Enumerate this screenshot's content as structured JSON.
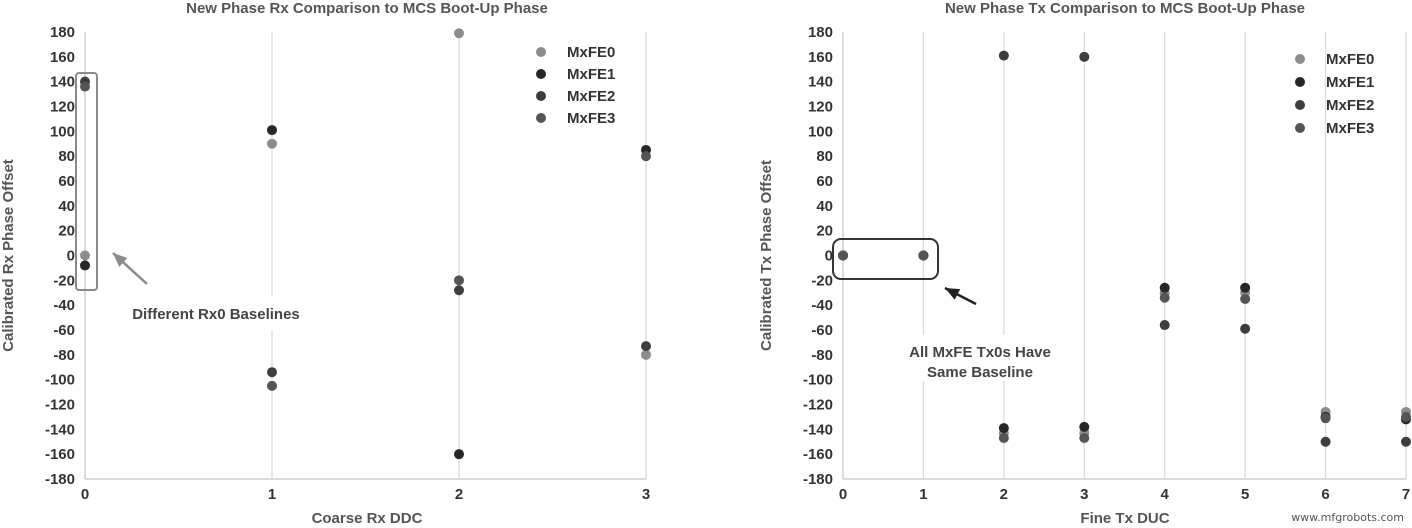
{
  "chart_data": [
    {
      "type": "scatter",
      "title": "New Phase Rx Comparison to MCS Boot-Up Phase",
      "xlabel": "Coarse Rx DDC",
      "ylabel": "Calibrated Rx Phase Offset",
      "xlim": [
        0,
        3
      ],
      "ylim": [
        -180,
        180
      ],
      "xticks": [
        0,
        1,
        2,
        3
      ],
      "yticks": [
        180,
        160,
        140,
        120,
        100,
        80,
        60,
        40,
        20,
        0,
        -20,
        -40,
        -60,
        -80,
        -100,
        -120,
        -140,
        -160,
        -180
      ],
      "grid": "vertical",
      "legend": "top-right",
      "series": [
        {
          "name": "MxFE0",
          "color": "#8c8c8c",
          "points": [
            [
              0,
              0
            ],
            [
              1,
              90
            ],
            [
              2,
              179
            ],
            [
              3,
              -80
            ]
          ]
        },
        {
          "name": "MxFE1",
          "color": "#262626",
          "points": [
            [
              0,
              -8
            ],
            [
              1,
              101
            ],
            [
              2,
              -160
            ],
            [
              3,
              85
            ]
          ]
        },
        {
          "name": "MxFE2",
          "color": "#3d3d3d",
          "points": [
            [
              0,
              140
            ],
            [
              1,
              -94
            ],
            [
              2,
              -28
            ],
            [
              3,
              -73
            ]
          ]
        },
        {
          "name": "MxFE3",
          "color": "#555555",
          "points": [
            [
              0,
              136
            ],
            [
              1,
              -105
            ],
            [
              2,
              -20
            ],
            [
              3,
              80
            ]
          ]
        }
      ],
      "annotation": "Different Rx0 Baselines"
    },
    {
      "type": "scatter",
      "title": "New Phase Tx Comparison to MCS Boot-Up Phase",
      "xlabel": "Fine Tx DUC",
      "ylabel": "Calibrated Tx Phase Offset",
      "xlim": [
        0,
        7
      ],
      "ylim": [
        -180,
        180
      ],
      "xticks": [
        0,
        1,
        2,
        3,
        4,
        5,
        6,
        7
      ],
      "yticks": [
        180,
        160,
        140,
        120,
        100,
        80,
        60,
        40,
        20,
        0,
        -20,
        -40,
        -60,
        -80,
        -100,
        -120,
        -140,
        -160,
        -180
      ],
      "grid": "vertical",
      "legend": "top-right",
      "series": [
        {
          "name": "MxFE0",
          "color": "#8c8c8c",
          "points": [
            [
              0,
              0
            ],
            [
              1,
              0
            ],
            [
              2,
              -143
            ],
            [
              3,
              -143
            ],
            [
              4,
              -30
            ],
            [
              5,
              -30
            ],
            [
              6,
              -126
            ],
            [
              7,
              -126
            ]
          ]
        },
        {
          "name": "MxFE1",
          "color": "#262626",
          "points": [
            [
              0,
              0
            ],
            [
              1,
              0
            ],
            [
              2,
              -139
            ],
            [
              3,
              -138
            ],
            [
              4,
              -26
            ],
            [
              5,
              -26
            ],
            [
              6,
              -130
            ],
            [
              7,
              -132
            ]
          ]
        },
        {
          "name": "MxFE2",
          "color": "#3d3d3d",
          "points": [
            [
              0,
              0
            ],
            [
              1,
              0
            ],
            [
              2,
              161
            ],
            [
              3,
              160
            ],
            [
              4,
              -56
            ],
            [
              5,
              -59
            ],
            [
              6,
              -150
            ],
            [
              7,
              -150
            ]
          ]
        },
        {
          "name": "MxFE3",
          "color": "#555555",
          "points": [
            [
              0,
              0
            ],
            [
              1,
              0
            ],
            [
              2,
              -147
            ],
            [
              3,
              -147
            ],
            [
              4,
              -34
            ],
            [
              5,
              -35
            ],
            [
              6,
              -131
            ],
            [
              7,
              -130
            ]
          ]
        }
      ],
      "annotation": "All MxFE Tx0s Have Same Baseline"
    }
  ],
  "watermark": "www.mfgrobots.com"
}
